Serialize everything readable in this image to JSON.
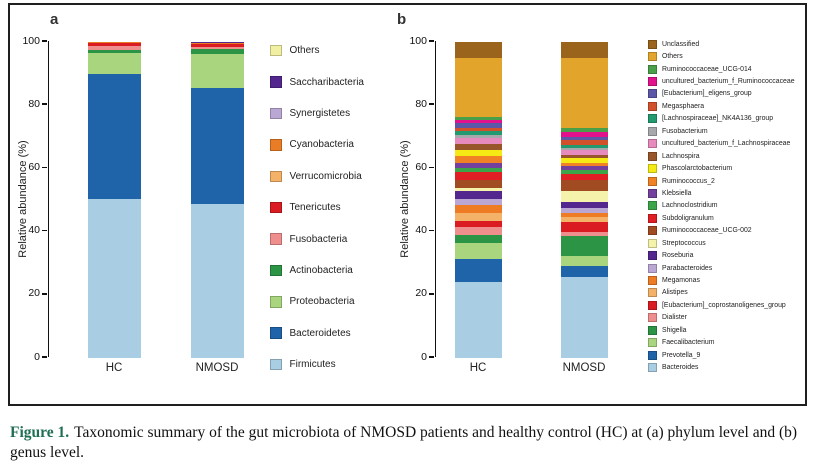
{
  "caption": {
    "label": "Figure 1.",
    "text": "Taxonomic summary of the gut microbiota of NMOSD patients and healthy control (HC) at (a) phylum level and (b) genus level.",
    "label_color": "#1e6f55"
  },
  "figure": {
    "panels": [
      {
        "label": "a"
      },
      {
        "label": "b"
      }
    ],
    "y_axis_label": "Relative abundance (%)",
    "y_ticks": [
      0,
      20,
      40,
      60,
      80,
      100
    ],
    "categories": [
      "HC",
      "NMOSD"
    ]
  },
  "chart_data": [
    {
      "type": "bar",
      "stacked": true,
      "panel": "a",
      "title": "",
      "xlabel": "",
      "ylabel": "Relative abundance (%)",
      "ylim": [
        0,
        100
      ],
      "grid": false,
      "legend_position": "right",
      "categories": [
        "HC",
        "NMOSD"
      ],
      "series_order": "bottom-to-top; legend shown reversed (top item = topmost segment)",
      "series": [
        {
          "name": "Firmicutes",
          "color": "#a9cde3",
          "values": [
            50.2,
            48.6
          ]
        },
        {
          "name": "Bacteroidetes",
          "color": "#1f64a8",
          "values": [
            39.8,
            36.9
          ]
        },
        {
          "name": "Proteobacteria",
          "color": "#aad57f",
          "values": [
            6.6,
            10.8
          ]
        },
        {
          "name": "Actinobacteria",
          "color": "#2c9445",
          "values": [
            0.8,
            1.6
          ]
        },
        {
          "name": "Fusobacteria",
          "color": "#ef8f8d",
          "values": [
            1.4,
            0.4
          ]
        },
        {
          "name": "Tenericutes",
          "color": "#da1b22",
          "values": [
            0.9,
            1.0
          ]
        },
        {
          "name": "Verrucomicrobia",
          "color": "#f4b168",
          "values": [
            0.1,
            0.2
          ]
        },
        {
          "name": "Cyanobacteria",
          "color": "#e87d25",
          "values": [
            0.1,
            0.2
          ]
        },
        {
          "name": "Synergistetes",
          "color": "#bba7d4",
          "values": [
            0.05,
            0.15
          ]
        },
        {
          "name": "Saccharibacteria",
          "color": "#53278d",
          "values": [
            0.03,
            0.1
          ]
        },
        {
          "name": "Others",
          "color": "#f1f0a2",
          "values": [
            0.02,
            0.05
          ]
        }
      ]
    },
    {
      "type": "bar",
      "stacked": true,
      "panel": "b",
      "title": "",
      "xlabel": "",
      "ylabel": "Relative abundance (%)",
      "ylim": [
        0,
        100
      ],
      "grid": false,
      "legend_position": "right",
      "categories": [
        "HC",
        "NMOSD"
      ],
      "series_order": "bottom-to-top; legend shown reversed (top item = topmost segment)",
      "series": [
        {
          "name": "Bacteroides",
          "color": "#a9cde3",
          "values": [
            24.0,
            25.5
          ]
        },
        {
          "name": "Prevotella_9",
          "color": "#1f64a8",
          "values": [
            7.4,
            3.6
          ]
        },
        {
          "name": "Faecalibacterium",
          "color": "#aad57f",
          "values": [
            5.0,
            3.1
          ]
        },
        {
          "name": "Shigella",
          "color": "#2c9445",
          "values": [
            2.5,
            6.4
          ]
        },
        {
          "name": "Dialister",
          "color": "#ef8f8d",
          "values": [
            2.5,
            1.3
          ]
        },
        {
          "name": "[Eubacterium]_coprostanoligenes_group",
          "color": "#da1b22",
          "values": [
            2.0,
            3.1
          ]
        },
        {
          "name": "Alistipes",
          "color": "#f4b168",
          "values": [
            2.5,
            1.7
          ]
        },
        {
          "name": "Megamonas",
          "color": "#ee7c24",
          "values": [
            2.5,
            1.3
          ]
        },
        {
          "name": "Parabacteroides",
          "color": "#bba7d4",
          "values": [
            2.0,
            1.5
          ]
        },
        {
          "name": "Roseburia",
          "color": "#53278d",
          "values": [
            2.6,
            1.8
          ]
        },
        {
          "name": "Streptococcus",
          "color": "#f5f2ab",
          "values": [
            0.8,
            3.5
          ]
        },
        {
          "name": "Ruminococcaceae_UCG-002",
          "color": "#a04b21",
          "values": [
            2.5,
            3.4
          ]
        },
        {
          "name": "Subdoligranulum",
          "color": "#e01e24",
          "values": [
            2.5,
            2.0
          ]
        },
        {
          "name": "Lachnoclostridium",
          "color": "#3ca54a",
          "values": [
            1.5,
            1.3
          ]
        },
        {
          "name": "Klebsiella",
          "color": "#73409d",
          "values": [
            1.5,
            1.4
          ]
        },
        {
          "name": "Ruminococcus_2",
          "color": "#f08125",
          "values": [
            2.2,
            0.8
          ]
        },
        {
          "name": "Phascolarctobacterium",
          "color": "#f6ea15",
          "values": [
            1.8,
            1.5
          ]
        },
        {
          "name": "Lachnospira",
          "color": "#99552a",
          "values": [
            2.0,
            1.0
          ]
        },
        {
          "name": "uncultured_bacterium_f_Lachnospiraceae",
          "color": "#e78abd",
          "values": [
            1.8,
            1.5
          ]
        },
        {
          "name": "Fusobacterium",
          "color": "#a6a8ab",
          "values": [
            1.0,
            0.8
          ]
        },
        {
          "name": "[Lachnospiraceae]_NK4A136_group",
          "color": "#23996f",
          "values": [
            1.2,
            1.0
          ]
        },
        {
          "name": "Megasphaera",
          "color": "#d2512b",
          "values": [
            1.0,
            1.4
          ]
        },
        {
          "name": "[Eubacterium]_eligens_group",
          "color": "#5c58a7",
          "values": [
            1.5,
            1.0
          ]
        },
        {
          "name": "uncultured_bacterium_f_Ruminococcaceae",
          "color": "#e2118c",
          "values": [
            1.0,
            1.8
          ]
        },
        {
          "name": "Ruminococcaceae_UCG-014",
          "color": "#4aa048",
          "values": [
            1.0,
            1.0
          ]
        },
        {
          "name": "Others",
          "color": "#e2a42b",
          "values": [
            18.6,
            22.4
          ]
        },
        {
          "name": "Unclassified",
          "color": "#9a641c",
          "values": [
            5.1,
            4.9
          ]
        }
      ]
    }
  ]
}
